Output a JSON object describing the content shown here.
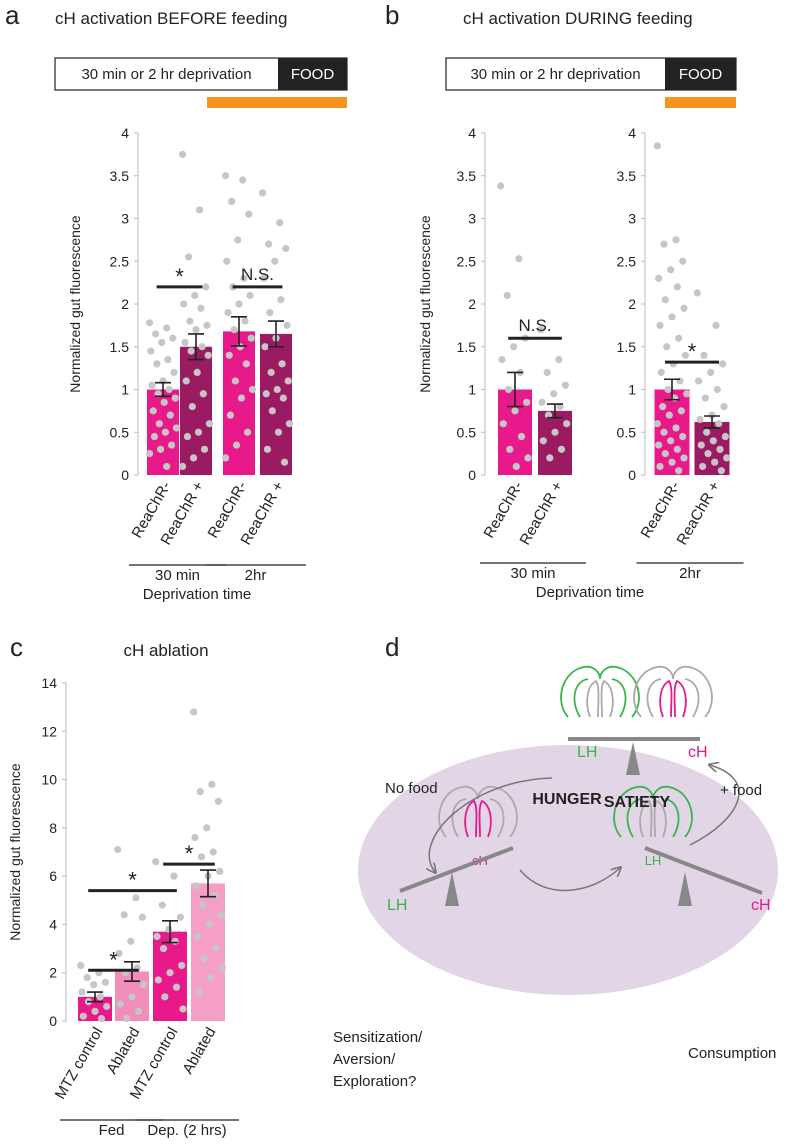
{
  "chart_data": [
    {
      "type": "bar",
      "panel": "a",
      "title": "cH activation BEFORE feeding",
      "timeline": {
        "deprivation": "30 min or 2 hr deprivation",
        "food": "FOOD",
        "stim_color": "#f7941d"
      },
      "ylabel": "Normalized gut fluorescence",
      "ylim": [
        0,
        4
      ],
      "yticks": [
        0,
        0.5,
        1,
        1.5,
        2,
        2.5,
        3,
        3.5,
        4
      ],
      "categories": [
        "ReaChR-",
        "ReaChR +",
        "ReaChR-",
        "ReaChR +"
      ],
      "values": [
        1.0,
        1.5,
        1.68,
        1.65
      ],
      "errors": [
        0.08,
        0.15,
        0.17,
        0.15
      ],
      "colors": [
        "#e8198b",
        "#9b1b63",
        "#e8198b",
        "#9b1b63"
      ],
      "points": [
        [
          1.78,
          1.72,
          1.65,
          1.6,
          1.55,
          1.45,
          1.35,
          1.3,
          1.2,
          1.1,
          1.05,
          1.0,
          0.95,
          0.9,
          0.85,
          0.75,
          0.7,
          0.6,
          0.55,
          0.5,
          0.45,
          0.35,
          0.3,
          0.25,
          0.1
        ],
        [
          3.75,
          3.1,
          2.55,
          2.2,
          2.1,
          2.0,
          1.95,
          1.8,
          1.75,
          1.7,
          1.55,
          1.5,
          1.45,
          1.4,
          1.2,
          1.1,
          0.95,
          0.8,
          0.6,
          0.5,
          0.45,
          0.3,
          0.2,
          0.1
        ],
        [
          3.5,
          3.45,
          3.2,
          3.05,
          2.75,
          2.5,
          2.3,
          2.2,
          2.1,
          2.0,
          1.9,
          1.8,
          1.7,
          1.6,
          1.5,
          1.4,
          1.3,
          1.1,
          1.0,
          0.9,
          0.7,
          0.5,
          0.35,
          0.2
        ],
        [
          3.3,
          2.95,
          2.7,
          2.65,
          2.5,
          2.3,
          2.05,
          1.9,
          1.75,
          1.6,
          1.5,
          1.3,
          1.2,
          1.1,
          1.0,
          0.95,
          0.9,
          0.75,
          0.6,
          0.5,
          0.3,
          0.15
        ]
      ],
      "significance": [
        {
          "label": "*",
          "y": 2.2,
          "pair": [
            0,
            1
          ]
        },
        {
          "label": "N.S.",
          "y": 2.2,
          "pair": [
            2,
            3
          ]
        }
      ],
      "groups": [
        "30 min",
        "2hr"
      ],
      "group_axis_label": "Deprivation time"
    },
    {
      "type": "bar",
      "panel": "b",
      "title": "cH activation DURING feeding",
      "timeline": {
        "deprivation": "30 min or 2 hr deprivation",
        "food": "FOOD",
        "stim_color": "#f7941d"
      },
      "ylabel": "Normalized gut fluorescence",
      "ylim": [
        0,
        4
      ],
      "yticks": [
        0,
        0.5,
        1,
        1.5,
        2,
        2.5,
        3,
        3.5,
        4
      ],
      "categories": [
        "ReaChR-",
        "ReaChR +"
      ],
      "values": [
        1.0,
        0.75
      ],
      "errors": [
        0.2,
        0.08
      ],
      "colors": [
        "#e8198b",
        "#9b1b63"
      ],
      "points": [
        [
          3.38,
          2.53,
          2.1,
          1.6,
          1.5,
          1.35,
          1.2,
          1.0,
          0.85,
          0.75,
          0.6,
          0.45,
          0.3,
          0.2,
          0.1
        ],
        [
          1.7,
          1.35,
          1.2,
          1.05,
          0.95,
          0.85,
          0.8,
          0.7,
          0.6,
          0.5,
          0.4,
          0.3,
          0.2
        ]
      ],
      "significance": [
        {
          "label": "N.S.",
          "y": 1.6,
          "pair": [
            0,
            1
          ]
        }
      ],
      "groups": [
        "30 min"
      ],
      "group_axis_label": "Deprivation time"
    },
    {
      "type": "bar",
      "ylim": [
        0,
        4
      ],
      "yticks": [
        0,
        0.5,
        1,
        1.5,
        2,
        2.5,
        3,
        3.5,
        4
      ],
      "categories": [
        "ReaChR-",
        "ReaChR +"
      ],
      "values": [
        1.0,
        0.62
      ],
      "errors": [
        0.12,
        0.07
      ],
      "colors": [
        "#e8198b",
        "#9b1b63"
      ],
      "points": [
        [
          3.85,
          2.75,
          2.7,
          2.5,
          2.4,
          2.3,
          2.2,
          2.05,
          1.95,
          1.85,
          1.75,
          1.6,
          1.5,
          1.4,
          1.3,
          1.2,
          1.1,
          1.0,
          0.95,
          0.9,
          0.8,
          0.75,
          0.7,
          0.6,
          0.55,
          0.5,
          0.45,
          0.4,
          0.35,
          0.3,
          0.25,
          0.2,
          0.15,
          0.1,
          0.05
        ],
        [
          2.13,
          1.75,
          1.4,
          1.3,
          1.2,
          1.1,
          1.0,
          0.9,
          0.8,
          0.7,
          0.65,
          0.6,
          0.5,
          0.45,
          0.4,
          0.35,
          0.3,
          0.25,
          0.2,
          0.15,
          0.1,
          0.05
        ]
      ],
      "significance": [
        {
          "label": "*",
          "y": 1.32,
          "pair": [
            0,
            1
          ]
        }
      ],
      "groups": [
        "2hr"
      ]
    },
    {
      "type": "bar",
      "panel": "c",
      "title": "cH ablation",
      "ylabel": "Normalized gut fluorescence",
      "ylim": [
        0,
        14
      ],
      "yticks": [
        0,
        2,
        4,
        6,
        8,
        10,
        12,
        14
      ],
      "categories": [
        "MTZ control",
        "Ablated",
        "MTZ control",
        "Ablated"
      ],
      "values": [
        1.0,
        2.05,
        3.7,
        5.7
      ],
      "errors": [
        0.2,
        0.4,
        0.45,
        0.55
      ],
      "colors": [
        "#e8198b",
        "#f08dba",
        "#e8198b",
        "#f59fc6"
      ],
      "points": [
        [
          2.3,
          2.0,
          1.8,
          1.6,
          1.5,
          1.2,
          1.0,
          0.8,
          0.6,
          0.4,
          0.2,
          0.1
        ],
        [
          7.1,
          5.1,
          4.4,
          4.3,
          3.3,
          2.8,
          2.2,
          2.0,
          1.5,
          1.0,
          0.7,
          0.4,
          0.1
        ],
        [
          6.6,
          6.0,
          4.8,
          4.3,
          3.8,
          3.5,
          3.3,
          3.0,
          2.3,
          2.0,
          1.7,
          1.4,
          1.0,
          0.5
        ],
        [
          12.8,
          9.8,
          9.5,
          9.1,
          8.0,
          7.6,
          7.0,
          6.8,
          6.2,
          6.0,
          5.6,
          5.2,
          4.8,
          4.4,
          4.0,
          3.5,
          3.0,
          2.6,
          2.2,
          1.8,
          1.2
        ]
      ],
      "significance": [
        {
          "label": "*",
          "y": 2.1,
          "pair": [
            0,
            1
          ]
        },
        {
          "label": "*",
          "y": 5.4,
          "pair": [
            0,
            2
          ]
        },
        {
          "label": "*",
          "y": 6.5,
          "pair": [
            2,
            3
          ]
        }
      ],
      "groups": [
        "Fed",
        "Dep. (2 hrs)"
      ]
    }
  ],
  "diagram": {
    "panel": "d",
    "satiety": {
      "label": "SATIETY",
      "lh": "LH",
      "ch": "cH"
    },
    "hunger": {
      "label": "HUNGER",
      "no_food": {
        "label": "No food",
        "brain_label": "cH",
        "balance_label": "LH"
      },
      "food": {
        "label": "+ food",
        "brain_label": "LH",
        "balance_label": "cH"
      }
    },
    "outcomes": {
      "no_food": [
        "Sensitization/",
        "Aversion/",
        "Exploration?"
      ],
      "food": "Consumption"
    }
  }
}
